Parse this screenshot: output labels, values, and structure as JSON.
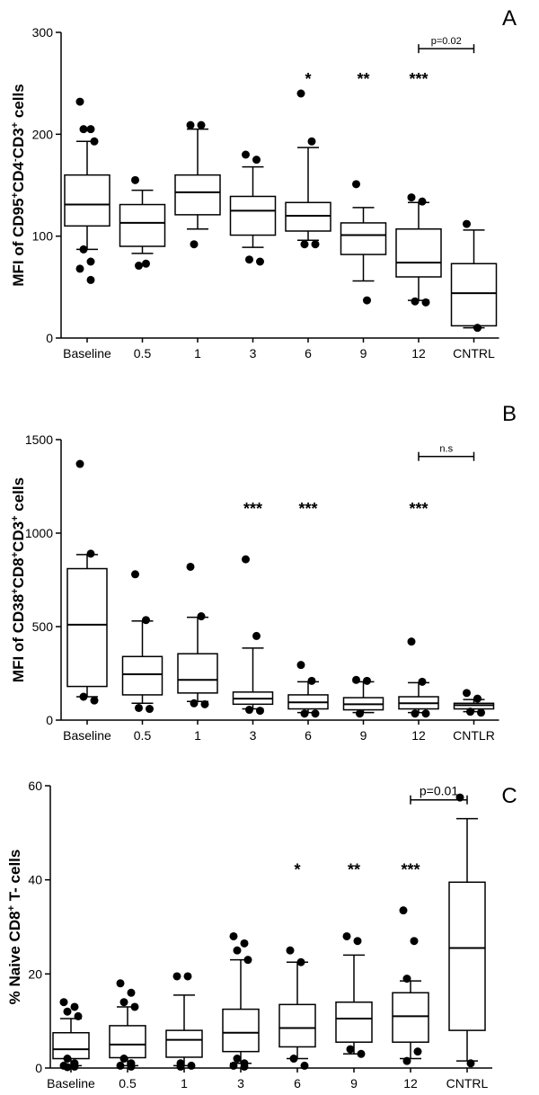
{
  "chart_data": [
    {
      "type": "box",
      "panel_label": "A",
      "ylabel": {
        "prefix": "MFI of CD95",
        "parts": [
          [
            "+",
            "CD4"
          ],
          [
            "-",
            "CD3"
          ],
          [
            "+",
            " cells"
          ]
        ]
      },
      "ylim": [
        0,
        300
      ],
      "yticks": [
        "0",
        "100",
        "200",
        "300"
      ],
      "categories": [
        "Baseline",
        "0.5",
        "1",
        "3",
        "6",
        "9",
        "12",
        "CNTRL"
      ],
      "boxes": [
        {
          "q1": 110,
          "median": 131,
          "q3": 160,
          "whisker_low": 87,
          "whisker_high": 193,
          "outliers": [
            232,
            205,
            205,
            193,
            87,
            75,
            68,
            57
          ]
        },
        {
          "q1": 90,
          "median": 113,
          "q3": 131,
          "whisker_low": 83,
          "whisker_high": 145,
          "outliers": [
            155,
            73,
            71
          ]
        },
        {
          "q1": 121,
          "median": 143,
          "q3": 160,
          "whisker_low": 107,
          "whisker_high": 205,
          "outliers": [
            209,
            209,
            92
          ]
        },
        {
          "q1": 101,
          "median": 125,
          "q3": 139,
          "whisker_low": 89,
          "whisker_high": 168,
          "outliers": [
            180,
            175,
            77,
            75
          ]
        },
        {
          "q1": 105,
          "median": 120,
          "q3": 133,
          "whisker_low": 96,
          "whisker_high": 187,
          "outliers": [
            240,
            193,
            92,
            92
          ]
        },
        {
          "q1": 82,
          "median": 101,
          "q3": 113,
          "whisker_low": 56,
          "whisker_high": 128,
          "outliers": [
            151,
            37
          ]
        },
        {
          "q1": 60,
          "median": 74,
          "q3": 107,
          "whisker_low": 37,
          "whisker_high": 133,
          "outliers": [
            138,
            134,
            36,
            35
          ]
        },
        {
          "q1": 12,
          "median": 44,
          "q3": 73,
          "whisker_low": 10,
          "whisker_high": 106,
          "outliers": [
            112,
            10
          ]
        }
      ],
      "significance": [
        {
          "category": "6",
          "text": "*",
          "y": 256
        },
        {
          "category": "9",
          "text": "**",
          "y": 256
        },
        {
          "category": "12",
          "text": "***",
          "y": 256
        }
      ],
      "comparison": {
        "from": "12",
        "to": "CNTRL",
        "text": "p=0.02",
        "y": 284
      }
    },
    {
      "type": "box",
      "panel_label": "B",
      "ylabel": {
        "prefix": "MFI of CD38",
        "parts": [
          [
            "+",
            "CD8"
          ],
          [
            "+",
            "CD3"
          ],
          [
            "+",
            " cells"
          ]
        ]
      },
      "ylim": [
        0,
        1500
      ],
      "yticks": [
        "0",
        "500",
        "1000",
        "1500"
      ],
      "categories": [
        "Baseline",
        "0.5",
        "1",
        "3",
        "6",
        "9",
        "12",
        "CNTLR"
      ],
      "boxes": [
        {
          "q1": 180,
          "median": 510,
          "q3": 810,
          "whisker_low": 125,
          "whisker_high": 885,
          "outliers": [
            1370,
            890,
            125,
            105
          ]
        },
        {
          "q1": 135,
          "median": 245,
          "q3": 340,
          "whisker_low": 90,
          "whisker_high": 530,
          "outliers": [
            780,
            535,
            65,
            60
          ]
        },
        {
          "q1": 145,
          "median": 215,
          "q3": 355,
          "whisker_low": 100,
          "whisker_high": 550,
          "outliers": [
            820,
            555,
            90,
            85
          ]
        },
        {
          "q1": 85,
          "median": 115,
          "q3": 150,
          "whisker_low": 60,
          "whisker_high": 385,
          "outliers": [
            860,
            450,
            55,
            50
          ]
        },
        {
          "q1": 60,
          "median": 95,
          "q3": 135,
          "whisker_low": 40,
          "whisker_high": 205,
          "outliers": [
            295,
            210,
            35,
            35
          ]
        },
        {
          "q1": 55,
          "median": 85,
          "q3": 120,
          "whisker_low": 40,
          "whisker_high": 205,
          "outliers": [
            215,
            210,
            35
          ]
        },
        {
          "q1": 60,
          "median": 90,
          "q3": 125,
          "whisker_low": 40,
          "whisker_high": 200,
          "outliers": [
            420,
            205,
            35,
            35
          ]
        },
        {
          "q1": 60,
          "median": 80,
          "q3": 90,
          "whisker_low": 45,
          "whisker_high": 110,
          "outliers": [
            145,
            115,
            45,
            40
          ]
        }
      ],
      "significance": [
        {
          "category": "3",
          "text": "***",
          "y": 1140
        },
        {
          "category": "6",
          "text": "***",
          "y": 1140
        },
        {
          "category": "12",
          "text": "***",
          "y": 1140
        }
      ],
      "comparison": {
        "from": "12",
        "to": "CNTLR",
        "text": "n.s",
        "y": 1410
      }
    },
    {
      "type": "box",
      "panel_label": "C",
      "ylabel": {
        "prefix": "% Naive CD8",
        "parts": [
          [
            "+",
            " T- cells"
          ]
        ]
      },
      "ylim": [
        0,
        60
      ],
      "yticks": [
        "0",
        "20",
        "40",
        "60"
      ],
      "categories": [
        "Baseline",
        "0.5",
        "1",
        "3",
        "6",
        "9",
        "12",
        "CNTRL"
      ],
      "boxes": [
        {
          "q1": 2,
          "median": 4,
          "q3": 7.5,
          "whisker_low": 0.5,
          "whisker_high": 10.5,
          "outliers": [
            14,
            13,
            12,
            11,
            2,
            1,
            0.5,
            0.3,
            0.2
          ]
        },
        {
          "q1": 2.2,
          "median": 5,
          "q3": 9,
          "whisker_low": 0.5,
          "whisker_high": 13,
          "outliers": [
            18,
            16,
            14,
            13,
            2,
            1,
            0.5,
            0.3
          ]
        },
        {
          "q1": 2.3,
          "median": 6,
          "q3": 8,
          "whisker_low": 0.5,
          "whisker_high": 15.5,
          "outliers": [
            19.5,
            19.5,
            1,
            0.5,
            0.3
          ]
        },
        {
          "q1": 3.5,
          "median": 7.5,
          "q3": 12.5,
          "whisker_low": 1,
          "whisker_high": 23,
          "outliers": [
            28,
            26.5,
            25,
            23,
            2,
            1,
            0.5,
            0.3
          ]
        },
        {
          "q1": 4.5,
          "median": 8.5,
          "q3": 13.5,
          "whisker_low": 2,
          "whisker_high": 22.5,
          "outliers": [
            25,
            22.5,
            2,
            0.5
          ]
        },
        {
          "q1": 5.5,
          "median": 10.5,
          "q3": 14,
          "whisker_low": 3,
          "whisker_high": 24,
          "outliers": [
            28,
            27,
            4,
            3
          ]
        },
        {
          "q1": 5.5,
          "median": 11,
          "q3": 16,
          "whisker_low": 2,
          "whisker_high": 18.5,
          "outliers": [
            33.5,
            27,
            19,
            3.5,
            1.5
          ]
        },
        {
          "q1": 8,
          "median": 25.5,
          "q3": 39.5,
          "whisker_low": 1.5,
          "whisker_high": 53,
          "outliers": [
            57.5,
            1
          ]
        }
      ],
      "significance": [
        {
          "category": "6",
          "text": "*",
          "y": 42.5
        },
        {
          "category": "9",
          "text": "**",
          "y": 42.5
        },
        {
          "category": "12",
          "text": "***",
          "y": 42.5
        }
      ],
      "comparison": {
        "from": "12",
        "to": "CNTRL",
        "text": "p=0.01",
        "y": 57
      }
    }
  ]
}
